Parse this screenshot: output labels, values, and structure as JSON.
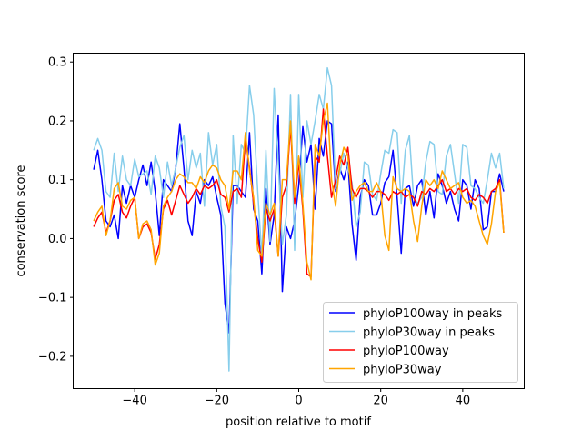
{
  "chart_data": {
    "type": "line",
    "title": "",
    "xlabel": "position relative to motif",
    "ylabel": "conservation score",
    "xlim": [
      -55,
      55
    ],
    "ylim": [
      -0.255,
      0.315
    ],
    "xticks": [
      -40,
      -20,
      0,
      20,
      40
    ],
    "xtick_labels": [
      "−40",
      "−20",
      "0",
      "20",
      "40"
    ],
    "yticks": [
      -0.2,
      -0.1,
      0.0,
      0.1,
      0.2,
      0.3
    ],
    "ytick_labels": [
      "−0.2",
      "−0.1",
      "0.0",
      "0.1",
      "0.2",
      "0.3"
    ],
    "grid": false,
    "legend_position": "lower-right",
    "x_start": -50,
    "x_end": 50,
    "series": [
      {
        "name": "phyloP100way in peaks",
        "color": "#0000ff",
        "values": [
          0.117,
          0.15,
          0.1,
          0.03,
          0.02,
          0.04,
          0.0,
          0.09,
          0.06,
          0.09,
          0.07,
          0.1,
          0.125,
          0.09,
          0.13,
          0.08,
          0.005,
          0.1,
          0.09,
          0.08,
          0.12,
          0.195,
          0.12,
          0.03,
          0.005,
          0.08,
          0.06,
          0.1,
          0.09,
          0.105,
          0.07,
          0.04,
          -0.11,
          -0.16,
          0.09,
          0.09,
          0.08,
          0.07,
          0.18,
          0.05,
          0.03,
          -0.06,
          0.085,
          -0.01,
          0.04,
          0.21,
          -0.09,
          0.02,
          0.0,
          0.03,
          0.09,
          0.19,
          0.13,
          0.16,
          0.05,
          0.17,
          0.14,
          0.2,
          0.195,
          0.08,
          0.12,
          0.1,
          0.13,
          0.025,
          -0.037,
          0.07,
          0.1,
          0.09,
          0.04,
          0.04,
          0.06,
          0.095,
          0.105,
          0.15,
          0.07,
          -0.025,
          0.085,
          0.09,
          0.055,
          0.09,
          0.1,
          0.04,
          0.08,
          0.035,
          0.11,
          0.09,
          0.06,
          0.08,
          0.05,
          0.03,
          0.1,
          0.09,
          0.05,
          0.1,
          0.085,
          0.015,
          0.02,
          0.08,
          0.08,
          0.11,
          0.08
        ]
      },
      {
        "name": "phyloP30way in peaks",
        "color": "#87ceeb",
        "values": [
          0.15,
          0.17,
          0.15,
          0.08,
          0.07,
          0.145,
          0.08,
          0.14,
          0.1,
          0.09,
          0.135,
          0.105,
          0.11,
          0.115,
          0.075,
          0.14,
          0.12,
          0.07,
          0.13,
          0.09,
          0.12,
          0.155,
          0.175,
          0.1,
          0.15,
          0.12,
          0.145,
          0.055,
          0.18,
          0.125,
          0.16,
          0.055,
          0.02,
          -0.225,
          0.175,
          0.06,
          0.16,
          0.145,
          0.26,
          0.21,
          0.08,
          -0.03,
          0.15,
          -0.005,
          0.255,
          0.13,
          -0.01,
          0.04,
          0.245,
          -0.02,
          0.245,
          0.07,
          0.2,
          0.16,
          0.2,
          0.245,
          0.22,
          0.29,
          0.26,
          0.085,
          0.11,
          0.145,
          0.12,
          0.095,
          0.02,
          0.045,
          0.13,
          0.125,
          0.075,
          0.065,
          0.11,
          0.15,
          0.145,
          0.185,
          0.18,
          0.06,
          0.15,
          0.175,
          0.07,
          0.06,
          0.07,
          0.13,
          0.165,
          0.16,
          0.08,
          0.075,
          0.14,
          0.16,
          0.11,
          0.06,
          0.16,
          0.155,
          0.09,
          0.085,
          0.07,
          0.06,
          0.1,
          0.145,
          0.12,
          0.145,
          0.085
        ]
      },
      {
        "name": "phyloP100way",
        "color": "#ff0000",
        "values": [
          0.02,
          0.035,
          0.045,
          0.01,
          0.03,
          0.065,
          0.075,
          0.045,
          0.035,
          0.055,
          0.07,
          0.0,
          0.02,
          0.025,
          0.01,
          -0.035,
          -0.01,
          0.05,
          0.065,
          0.04,
          0.065,
          0.09,
          0.075,
          0.06,
          0.07,
          0.085,
          0.075,
          0.09,
          0.085,
          0.09,
          0.1,
          0.075,
          0.07,
          0.045,
          0.08,
          0.085,
          0.07,
          0.17,
          0.12,
          0.06,
          0.0,
          -0.04,
          0.05,
          0.03,
          0.05,
          -0.03,
          0.07,
          0.09,
          0.19,
          0.06,
          0.13,
          0.05,
          -0.06,
          -0.065,
          0.14,
          0.13,
          0.22,
          0.14,
          0.07,
          0.1,
          0.14,
          0.125,
          0.155,
          0.085,
          0.07,
          0.085,
          0.085,
          0.08,
          0.07,
          0.08,
          0.08,
          0.075,
          0.065,
          0.08,
          0.075,
          0.08,
          0.07,
          0.075,
          0.07,
          0.055,
          0.08,
          0.075,
          0.085,
          0.08,
          0.09,
          0.1,
          0.08,
          0.085,
          0.075,
          0.085,
          0.08,
          0.085,
          0.07,
          0.065,
          0.075,
          0.07,
          0.06,
          0.08,
          0.085,
          0.1,
          0.01
        ]
      },
      {
        "name": "phyloP30way",
        "color": "#ffa500",
        "values": [
          0.03,
          0.045,
          0.055,
          0.005,
          0.03,
          0.085,
          0.095,
          0.055,
          0.05,
          0.065,
          0.07,
          0.0,
          0.025,
          0.03,
          0.015,
          -0.045,
          -0.025,
          0.055,
          0.07,
          0.08,
          0.1,
          0.11,
          0.105,
          0.095,
          0.095,
          0.085,
          0.105,
          0.095,
          0.115,
          0.125,
          0.12,
          0.1,
          0.09,
          0.05,
          0.115,
          0.115,
          0.1,
          0.18,
          0.115,
          0.07,
          -0.02,
          -0.03,
          0.06,
          0.04,
          0.06,
          -0.03,
          0.1,
          0.1,
          0.2,
          0.07,
          0.14,
          0.06,
          -0.04,
          -0.07,
          0.16,
          0.14,
          0.2,
          0.23,
          0.1,
          0.055,
          0.125,
          0.155,
          0.14,
          0.065,
          0.08,
          0.09,
          0.095,
          0.08,
          0.08,
          0.095,
          0.08,
          0.005,
          -0.02,
          0.105,
          0.085,
          0.08,
          0.085,
          0.08,
          0.03,
          -0.005,
          0.055,
          0.1,
          0.09,
          0.1,
          0.085,
          0.115,
          0.1,
          0.085,
          0.09,
          0.095,
          0.07,
          0.06,
          0.065,
          0.055,
          0.03,
          0.005,
          -0.01,
          0.025,
          0.08,
          0.095,
          0.01
        ]
      }
    ]
  }
}
